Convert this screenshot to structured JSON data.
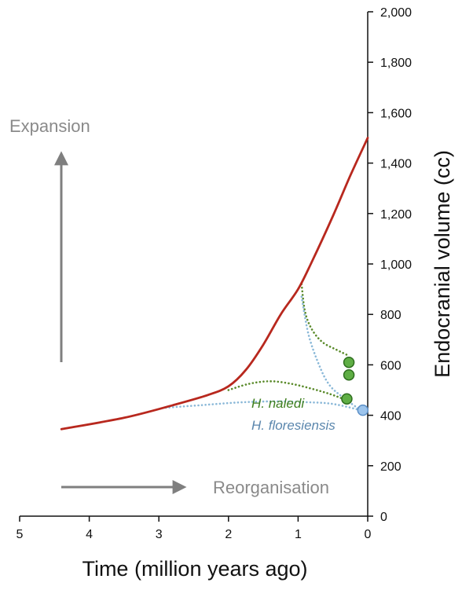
{
  "chart_data": {
    "type": "line",
    "xlabel": "Time (million years ago)",
    "ylabel": "Endocranial volume (cc)",
    "xlim": [
      5,
      0
    ],
    "ylim": [
      0,
      2000
    ],
    "x_reversed": true,
    "y_axis_side": "right",
    "x_ticks": [
      5,
      4,
      3,
      2,
      1,
      0
    ],
    "y_ticks": [
      0,
      200,
      400,
      600,
      800,
      1000,
      1200,
      1400,
      1600,
      1800,
      2000
    ],
    "y_tick_labels": [
      "0",
      "200",
      "400",
      "600",
      "800",
      "1,000",
      "1,200",
      "1,400",
      "1,600",
      "1,800",
      "2,000"
    ],
    "grid": false,
    "series": [
      {
        "color": "#b8281e",
        "style": "solid",
        "points": [
          [
            4.4,
            345
          ],
          [
            3.5,
            390
          ],
          [
            2.8,
            440
          ],
          [
            2.3,
            480
          ],
          [
            2.0,
            515
          ],
          [
            1.75,
            580
          ],
          [
            1.5,
            680
          ],
          [
            1.25,
            800
          ],
          [
            1.0,
            900
          ],
          [
            0.8,
            1010
          ],
          [
            0.5,
            1190
          ],
          [
            0.25,
            1350
          ],
          [
            0.0,
            1500
          ]
        ]
      },
      {
        "color": "#5a8a2a",
        "style": "dotted",
        "points": [
          [
            0.95,
            920
          ],
          [
            0.9,
            810
          ],
          [
            0.8,
            740
          ],
          [
            0.65,
            690
          ],
          [
            0.45,
            660
          ],
          [
            0.3,
            640
          ]
        ]
      },
      {
        "color": "#5a8a2a",
        "style": "dotted",
        "points": [
          [
            2.0,
            500
          ],
          [
            1.7,
            525
          ],
          [
            1.4,
            535
          ],
          [
            1.1,
            525
          ],
          [
            0.8,
            505
          ],
          [
            0.55,
            485
          ],
          [
            0.35,
            465
          ]
        ]
      },
      {
        "color": "#8ab8d8",
        "style": "dotted",
        "points": [
          [
            0.95,
            870
          ],
          [
            0.85,
            720
          ],
          [
            0.7,
            600
          ],
          [
            0.55,
            520
          ],
          [
            0.35,
            470
          ],
          [
            0.1,
            420
          ]
        ]
      },
      {
        "color": "#8ab8d8",
        "style": "dotted",
        "points": [
          [
            2.9,
            430
          ],
          [
            2.4,
            440
          ],
          [
            1.9,
            450
          ],
          [
            1.4,
            455
          ],
          [
            0.9,
            452
          ],
          [
            0.5,
            445
          ],
          [
            0.1,
            420
          ]
        ]
      }
    ],
    "points": [
      {
        "x": 0.27,
        "y": 610,
        "color": "#5fae45",
        "edge": "#2e6e1e"
      },
      {
        "x": 0.27,
        "y": 560,
        "color": "#5fae45",
        "edge": "#2e6e1e"
      },
      {
        "x": 0.3,
        "y": 465,
        "color": "#5fae45",
        "edge": "#2e6e1e"
      },
      {
        "x": 0.07,
        "y": 420,
        "color": "#9cc4ec",
        "edge": "#5b8fc7"
      }
    ],
    "annotations": {
      "expansion": "Expansion",
      "reorganisation": "Reorganisation",
      "naledi": "H. naledi",
      "floresiensis": "H. floresiensis"
    },
    "colors": {
      "expansion_arrow": "#7f7f7f",
      "naledi_text": "#3f7f1f",
      "floresiensis_text": "#5a86ad"
    }
  }
}
